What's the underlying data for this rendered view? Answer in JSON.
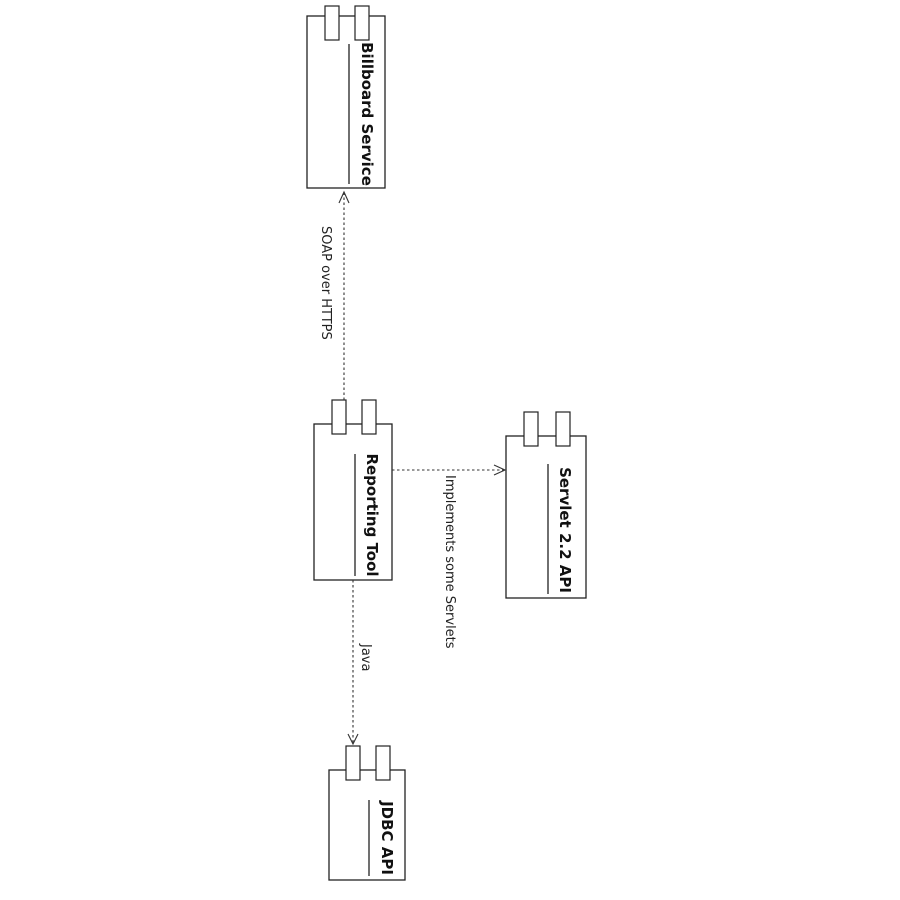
{
  "components": {
    "billboard": {
      "label": "Billboard Service"
    },
    "reporting": {
      "label": "Reporting Tool"
    },
    "servlet": {
      "label": "Servlet 2.2 API"
    },
    "jdbc": {
      "label": "JDBC API"
    }
  },
  "dependencies": {
    "reporting_to_billboard": {
      "label": "SOAP over HTTPS"
    },
    "reporting_to_servlet": {
      "label": "Implements some Servlets"
    },
    "reporting_to_jdbc": {
      "label": "Java"
    }
  }
}
